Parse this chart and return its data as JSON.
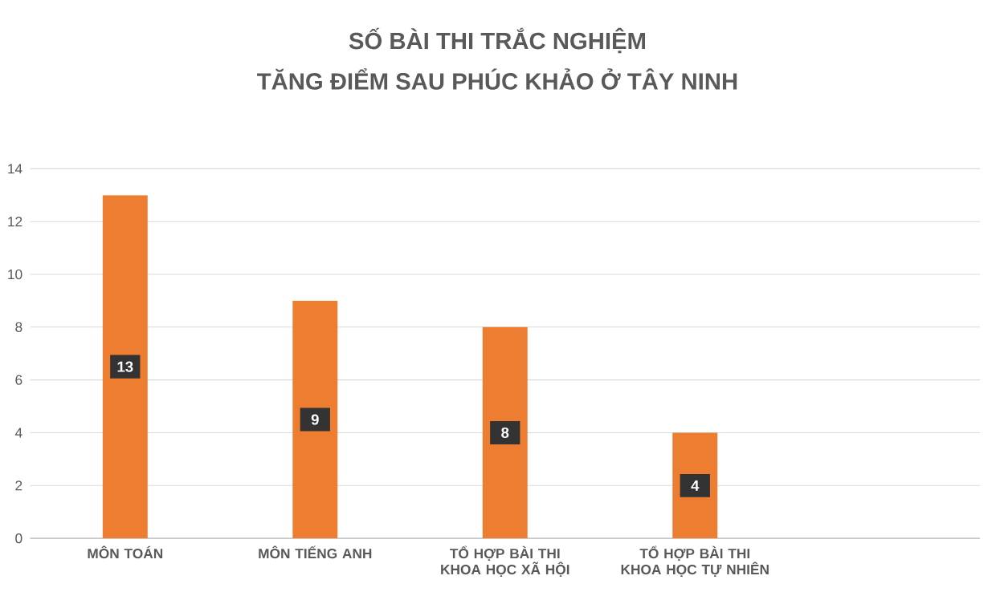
{
  "chart_data": {
    "type": "bar",
    "title": "SỐ BÀI THI TRẮC NGHIỆM",
    "subtitle": "TĂNG ĐIỂM SAU PHÚC KHẢO Ở TÂY NINH",
    "categories": [
      "MÔN TOÁN",
      "MÔN TIẾNG ANH",
      "TỔ HỢP BÀI THI KHOA HỌC XÃ HỘI",
      "TỔ HỢP BÀI THI KHOA HỌC TỰ NHIÊN"
    ],
    "values": [
      13,
      9,
      8,
      4
    ],
    "color": "#ed7d31",
    "data_labels": true,
    "ylim": [
      0,
      14
    ],
    "yticks": [
      0,
      2,
      4,
      6,
      8,
      10,
      12,
      14
    ],
    "grid": "y"
  }
}
